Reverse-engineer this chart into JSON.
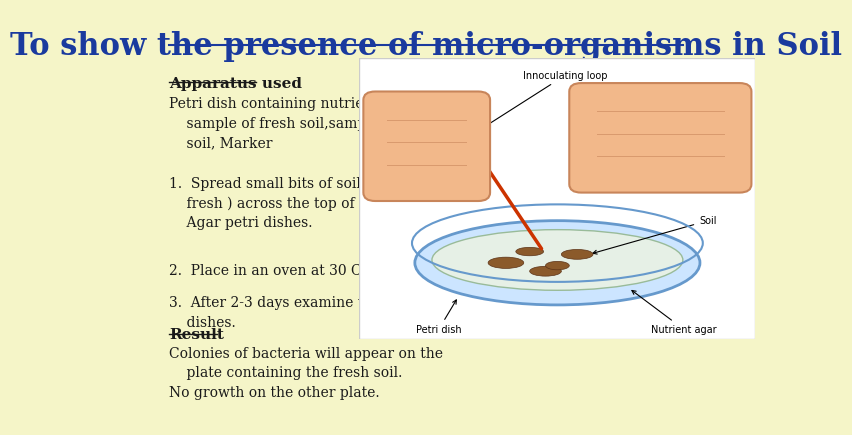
{
  "background_color": "#f5f5c8",
  "title": "To show the presence of micro-organisms in Soil",
  "title_color": "#1a3a9e",
  "title_fontsize": 22,
  "apparatus_heading": "Apparatus used",
  "apparatus_text": "Petri dish containing nutrient Agar,\n    sample of fresh soil,sample of sterile\n    soil, Marker",
  "steps": [
    "1.  Spread small bits of soil(sterile and\n    fresh ) across the top of the nutrient\n    Agar petri dishes.",
    "2.  Place in an oven at 30 C",
    "3.  After 2-3 days examine the petri-\n    dishes."
  ],
  "result_heading": "Result",
  "result_text": "Colonies of bacteria will appear on the\n    plate containing the fresh soil.\nNo growth on the other plate.",
  "text_color": "#1a1a1a",
  "heading_color": "#1a1a1a"
}
